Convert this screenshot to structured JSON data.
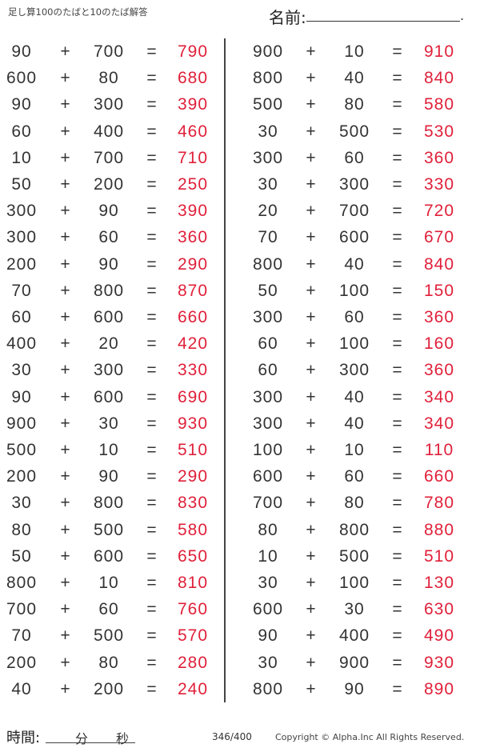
{
  "header": {
    "title": "足し算100のたばと10のたば解答",
    "name_label": "名前:",
    "name_end": "."
  },
  "operator": "+",
  "equals": "=",
  "colors": {
    "answer": "#e0203a",
    "text": "#333333"
  },
  "left": [
    [
      "90",
      "700",
      "790"
    ],
    [
      "600",
      "80",
      "680"
    ],
    [
      "90",
      "300",
      "390"
    ],
    [
      "60",
      "400",
      "460"
    ],
    [
      "10",
      "700",
      "710"
    ],
    [
      "50",
      "200",
      "250"
    ],
    [
      "300",
      "90",
      "390"
    ],
    [
      "300",
      "60",
      "360"
    ],
    [
      "200",
      "90",
      "290"
    ],
    [
      "70",
      "800",
      "870"
    ],
    [
      "60",
      "600",
      "660"
    ],
    [
      "400",
      "20",
      "420"
    ],
    [
      "30",
      "300",
      "330"
    ],
    [
      "90",
      "600",
      "690"
    ],
    [
      "900",
      "30",
      "930"
    ],
    [
      "500",
      "10",
      "510"
    ],
    [
      "200",
      "90",
      "290"
    ],
    [
      "30",
      "800",
      "830"
    ],
    [
      "80",
      "500",
      "580"
    ],
    [
      "50",
      "600",
      "650"
    ],
    [
      "800",
      "10",
      "810"
    ],
    [
      "700",
      "60",
      "760"
    ],
    [
      "70",
      "500",
      "570"
    ],
    [
      "200",
      "80",
      "280"
    ],
    [
      "40",
      "200",
      "240"
    ]
  ],
  "right": [
    [
      "900",
      "10",
      "910"
    ],
    [
      "800",
      "40",
      "840"
    ],
    [
      "500",
      "80",
      "580"
    ],
    [
      "30",
      "500",
      "530"
    ],
    [
      "300",
      "60",
      "360"
    ],
    [
      "30",
      "300",
      "330"
    ],
    [
      "20",
      "700",
      "720"
    ],
    [
      "70",
      "600",
      "670"
    ],
    [
      "800",
      "40",
      "840"
    ],
    [
      "50",
      "100",
      "150"
    ],
    [
      "300",
      "60",
      "360"
    ],
    [
      "60",
      "100",
      "160"
    ],
    [
      "60",
      "300",
      "360"
    ],
    [
      "300",
      "40",
      "340"
    ],
    [
      "300",
      "40",
      "340"
    ],
    [
      "100",
      "10",
      "110"
    ],
    [
      "600",
      "60",
      "660"
    ],
    [
      "700",
      "80",
      "780"
    ],
    [
      "80",
      "800",
      "880"
    ],
    [
      "10",
      "500",
      "510"
    ],
    [
      "30",
      "100",
      "130"
    ],
    [
      "600",
      "30",
      "630"
    ],
    [
      "90",
      "400",
      "490"
    ],
    [
      "30",
      "900",
      "930"
    ],
    [
      "800",
      "90",
      "890"
    ]
  ],
  "footer": {
    "time_label": "時間:",
    "minutes": "分",
    "seconds": "秒",
    "page": "346/400",
    "copyright": "Copyright ©  Alpha.Inc All Rights Reserved."
  }
}
